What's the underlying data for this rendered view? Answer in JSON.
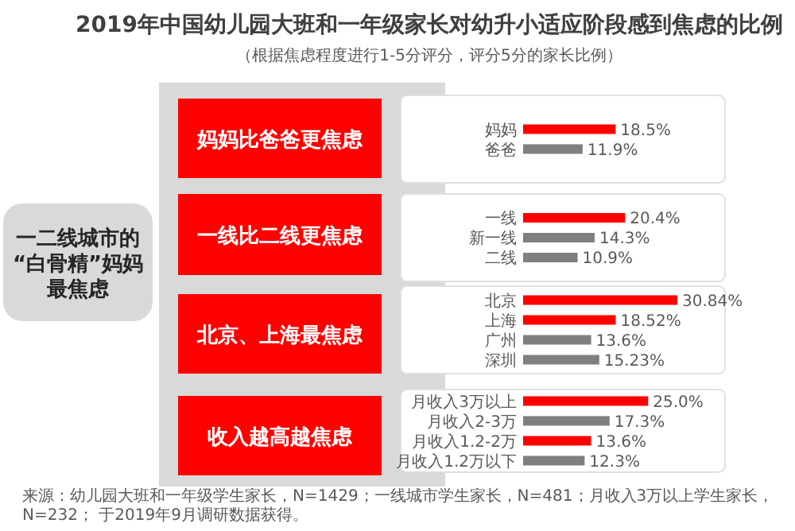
{
  "chart_data": [
    {
      "type": "other",
      "title": "2019年中国幼儿园大班和一年级家长对幼升小适应阶段感到焦虑的比例",
      "subtitle": "（根据焦虑程度进行1-5分评分，评分5分的家长比例）",
      "annotations": [
        "一二线城市的",
        "“白骨精”妈妈",
        "最焦虑",
        "来源：幼儿园大班和一年级学生家长，N=1429；一线城市学生家长，N=481；月收入3万以上学生家长，N=232； 于2019年9月调研数据获得。"
      ]
    },
    {
      "type": "bar",
      "orientation": "horizontal",
      "title": "妈妈比爸爸更焦虑",
      "categories": [
        "妈妈",
        "爸爸"
      ],
      "values": [
        18.5,
        11.9
      ],
      "value_labels": [
        "18.5%",
        "11.9%"
      ],
      "colors": [
        "#ff0000",
        "#7f7f7f"
      ]
    },
    {
      "type": "bar",
      "orientation": "horizontal",
      "title": "一线比二线更焦虑",
      "categories": [
        "一线",
        "新一线",
        "二线"
      ],
      "values": [
        20.4,
        14.3,
        10.9
      ],
      "value_labels": [
        "20.4%",
        "14.3%",
        "10.9%"
      ],
      "colors": [
        "#ff0000",
        "#7f7f7f",
        "#7f7f7f"
      ]
    },
    {
      "type": "bar",
      "orientation": "horizontal",
      "title": "北京、上海最焦虑",
      "categories": [
        "北京",
        "上海",
        "广州",
        "深圳"
      ],
      "values": [
        30.84,
        18.52,
        13.6,
        15.23
      ],
      "value_labels": [
        "30.84%",
        "18.52%",
        "13.6%",
        "15.23%"
      ],
      "colors": [
        "#ff0000",
        "#ff0000",
        "#7f7f7f",
        "#7f7f7f"
      ]
    },
    {
      "type": "bar",
      "orientation": "horizontal",
      "title": "收入越高越焦虑",
      "categories": [
        "月收入3万以上",
        "月收入2-3万",
        "月收入1.2-2万",
        "月收入1.2万以下"
      ],
      "values": [
        25.0,
        17.3,
        13.6,
        12.3
      ],
      "value_labels": [
        "25.0%",
        "17.3%",
        "13.6%",
        "12.3%"
      ],
      "colors": [
        "#ff0000",
        "#7f7f7f",
        "#ff0000",
        "#7f7f7f"
      ]
    }
  ]
}
